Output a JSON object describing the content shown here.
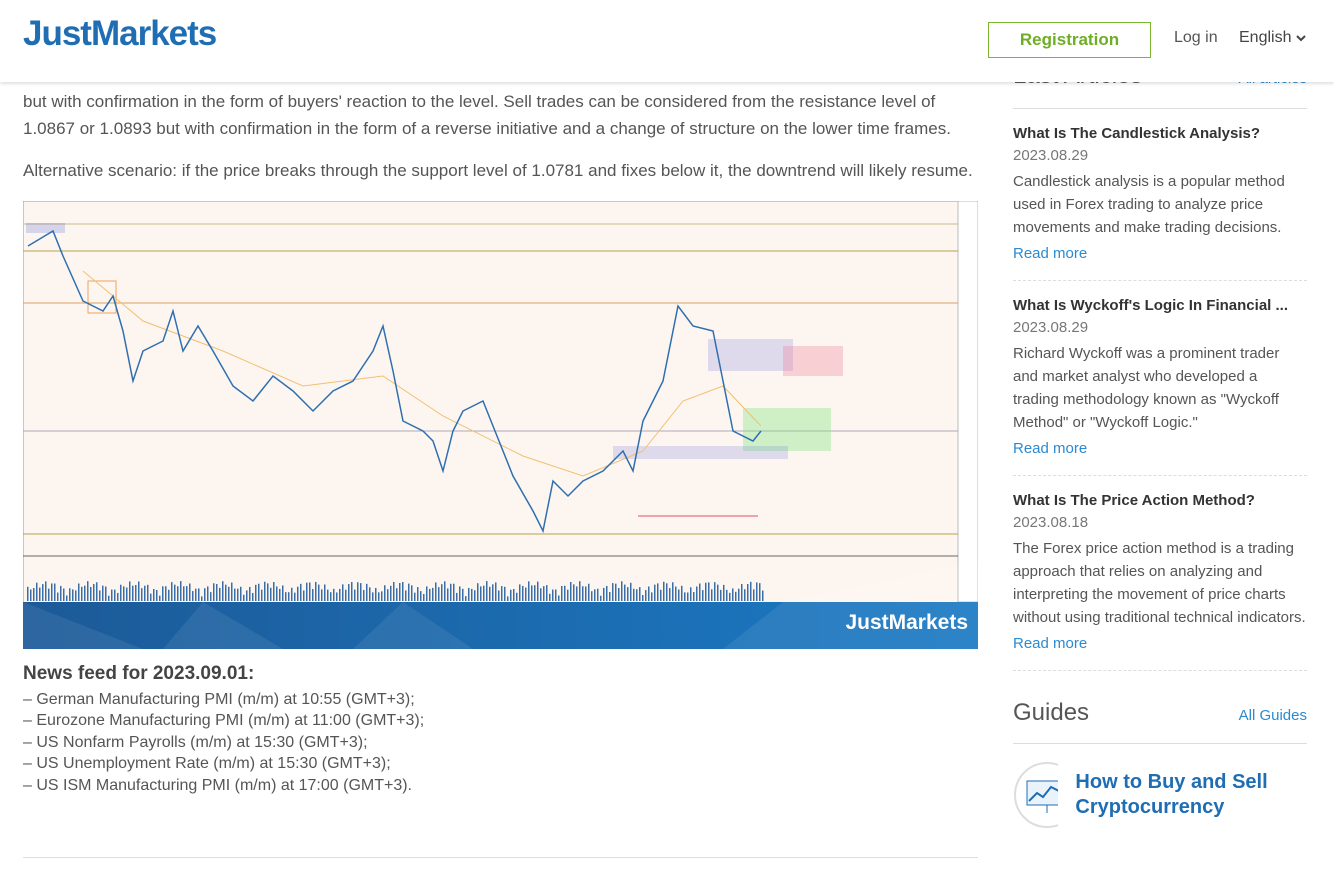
{
  "header": {
    "logo": "JustMarkets",
    "registration": "Registration",
    "login": "Log in",
    "language": "English"
  },
  "article": {
    "paragraphs": [
      "but with confirmation in the form of buyers' reaction to the level. Sell trades can be considered from the resistance level of 1.0867 or 1.0893 but with confirmation in the form of a reverse initiative and a change of structure on the lower time frames.",
      "Alternative scenario: if the price breaks through the support level of 1.0781 and fixes below it, the downtrend will likely resume."
    ],
    "chart_watermark": "JustMarkets",
    "news_title": "News feed for 2023.09.01:",
    "news_items": [
      "– German Manufacturing PMI (m/m) at 10:55 (GMT+3);",
      "– Eurozone Manufacturing PMI (m/m) at 11:00 (GMT+3);",
      "– US Nonfarm Payrolls (m/m) at 15:30 (GMT+3);",
      "– US Unemployment Rate (m/m) at 15:30 (GMT+3);",
      "– US ISM Manufacturing PMI (m/m) at 17:00 (GMT+3)."
    ]
  },
  "sidebar": {
    "last_articles": {
      "title": "Last Articles",
      "link": "All articles",
      "items": [
        {
          "title": "What Is The Candlestick Analysis?",
          "date": "2023.08.29",
          "text": "Candlestick analysis is a popular method used in Forex trading to analyze price movements and make trading decisions.",
          "link": "Read more"
        },
        {
          "title": "What Is Wyckoff's Logic In Financial ...",
          "date": "2023.08.29",
          "text": "Richard Wyckoff was a prominent trader and market analyst who developed a trading methodology known as \"Wyckoff Method\" or \"Wyckoff Logic.\"",
          "link": "Read more"
        },
        {
          "title": "What Is The Price Action Method?",
          "date": "2023.08.18",
          "text": "The Forex price action method is a trading approach that relies on analyzing and interpreting the movement of price charts without using traditional technical indicators.",
          "link": "Read more"
        }
      ]
    },
    "guides": {
      "title": "Guides",
      "link": "All Guides",
      "items": [
        {
          "title": "How to Buy and Sell Cryptocurrency"
        }
      ]
    }
  }
}
